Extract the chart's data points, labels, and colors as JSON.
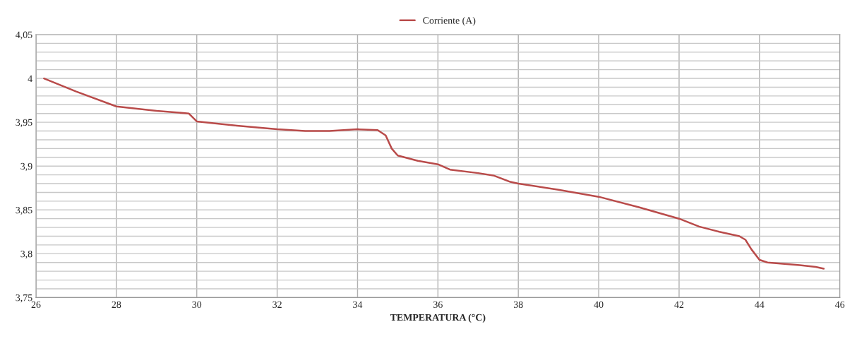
{
  "chart_data": {
    "type": "line",
    "xlabel": "TEMPERATURA (°C)",
    "series": [
      {
        "name": "Corriente (A)",
        "color": "#b94b4a",
        "x": [
          26.2,
          27,
          28,
          29,
          29.8,
          30,
          31,
          32,
          32.7,
          33.3,
          34,
          34.5,
          34.7,
          34.85,
          35,
          35.5,
          36,
          36.1,
          36.3,
          37,
          37.4,
          37.8,
          38,
          39,
          40,
          41,
          42,
          42.5,
          43,
          43.5,
          43.65,
          43.8,
          44,
          44.2,
          45,
          45.4,
          45.6
        ],
        "values": [
          4.0,
          3.985,
          3.968,
          3.963,
          3.96,
          3.951,
          3.946,
          3.942,
          3.94,
          3.94,
          3.942,
          3.941,
          3.935,
          3.92,
          3.912,
          3.906,
          3.902,
          3.9,
          3.896,
          3.892,
          3.889,
          3.882,
          3.88,
          3.873,
          3.865,
          3.853,
          3.84,
          3.831,
          3.825,
          3.82,
          3.816,
          3.805,
          3.793,
          3.79,
          3.787,
          3.785,
          3.783
        ]
      }
    ],
    "xlim": [
      26,
      46
    ],
    "xticks": [
      26,
      28,
      30,
      32,
      34,
      36,
      38,
      40,
      42,
      44,
      46
    ],
    "ylim": [
      3.75,
      4.05
    ],
    "yticks": [
      {
        "value": 3.75,
        "label": "3,75"
      },
      {
        "value": 3.76,
        "label": null
      },
      {
        "value": 3.77,
        "label": null
      },
      {
        "value": 3.78,
        "label": null
      },
      {
        "value": 3.79,
        "label": null
      },
      {
        "value": 3.8,
        "label": "3,8"
      },
      {
        "value": 3.81,
        "label": null
      },
      {
        "value": 3.82,
        "label": null
      },
      {
        "value": 3.83,
        "label": null
      },
      {
        "value": 3.84,
        "label": null
      },
      {
        "value": 3.85,
        "label": "3,85"
      },
      {
        "value": 3.86,
        "label": null
      },
      {
        "value": 3.87,
        "label": null
      },
      {
        "value": 3.88,
        "label": null
      },
      {
        "value": 3.89,
        "label": null
      },
      {
        "value": 3.9,
        "label": "3,9"
      },
      {
        "value": 3.91,
        "label": null
      },
      {
        "value": 3.92,
        "label": null
      },
      {
        "value": 3.93,
        "label": null
      },
      {
        "value": 3.94,
        "label": null
      },
      {
        "value": 3.95,
        "label": "3,95"
      },
      {
        "value": 3.96,
        "label": null
      },
      {
        "value": 3.97,
        "label": null
      },
      {
        "value": 3.98,
        "label": null
      },
      {
        "value": 3.99,
        "label": null
      },
      {
        "value": 4.0,
        "label": "4"
      },
      {
        "value": 4.01,
        "label": null
      },
      {
        "value": 4.02,
        "label": null
      },
      {
        "value": 4.03,
        "label": null
      },
      {
        "value": 4.04,
        "label": null
      },
      {
        "value": 4.05,
        "label": "4,05"
      }
    ],
    "grid": true,
    "legend": "top",
    "marker": "none",
    "line_style": "solid"
  }
}
